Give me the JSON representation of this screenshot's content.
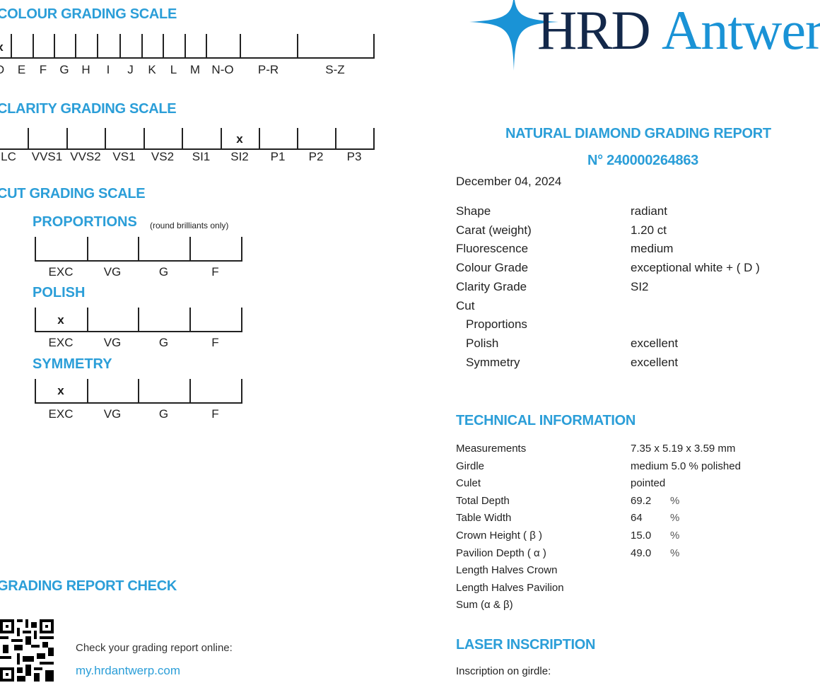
{
  "colour_scale": {
    "title": "COLOUR GRADING SCALE",
    "grades": [
      "D",
      "E",
      "F",
      "G",
      "H",
      "I",
      "J",
      "K",
      "L",
      "M",
      "N-O",
      "P-R",
      "S-Z"
    ],
    "selected": "D",
    "mark": "x"
  },
  "clarity_scale": {
    "title": "CLARITY GRADING SCALE",
    "grades": [
      "LC",
      "VVS1",
      "VVS2",
      "VS1",
      "VS2",
      "SI1",
      "SI2",
      "P1",
      "P2",
      "P3"
    ],
    "selected": "SI2",
    "mark": "x"
  },
  "cut_scale": {
    "title": "CUT GRADING SCALE",
    "proportions": {
      "title": "PROPORTIONS",
      "note": "(round brilliants only)",
      "grades": [
        "EXC",
        "VG",
        "G",
        "F"
      ],
      "selected": null
    },
    "polish": {
      "title": "POLISH",
      "grades": [
        "EXC",
        "VG",
        "G",
        "F"
      ],
      "selected": "EXC"
    },
    "symmetry": {
      "title": "SYMMETRY",
      "grades": [
        "EXC",
        "VG",
        "G",
        "F"
      ],
      "selected": "EXC"
    },
    "mark": "x"
  },
  "report_check": {
    "title": "GRADING REPORT CHECK",
    "text": "Check your grading report online:",
    "link": "my.hrdantwerp.com"
  },
  "logo": {
    "text_dark": "HRD",
    "text_blue": "Antwerp",
    "dark_color": "#13284a",
    "blue_color": "#1a93d6"
  },
  "report": {
    "title": "NATURAL DIAMOND GRADING REPORT",
    "number": "N° 240000264863",
    "date": "December 04, 2024",
    "fields": [
      {
        "label": "Shape",
        "value": "radiant"
      },
      {
        "label": "Carat (weight)",
        "value": "1.20 ct"
      },
      {
        "label": "Fluorescence",
        "value": "medium"
      },
      {
        "label": "Colour Grade",
        "value": "exceptional white + ( D )"
      },
      {
        "label": "Clarity Grade",
        "value": "SI2"
      },
      {
        "label": "Cut",
        "value": ""
      },
      {
        "label": "Proportions",
        "value": ""
      },
      {
        "label": "Polish",
        "value": "excellent"
      },
      {
        "label": "Symmetry",
        "value": "excellent"
      }
    ]
  },
  "technical": {
    "title": "TECHNICAL INFORMATION",
    "rows": [
      {
        "label": "Measurements",
        "value": "7.35 x 5.19 x 3.59 mm",
        "unit": ""
      },
      {
        "label": "Girdle",
        "value": "medium 5.0 % polished",
        "unit": ""
      },
      {
        "label": "Culet",
        "value": "pointed",
        "unit": ""
      },
      {
        "label": "Total Depth",
        "value": "69.2",
        "unit": "%"
      },
      {
        "label": "Table Width",
        "value": "64",
        "unit": "%"
      },
      {
        "label": "Crown Height ( β )",
        "value": "15.0",
        "unit": "%"
      },
      {
        "label": "Pavilion Depth ( α )",
        "value": "49.0",
        "unit": "%"
      },
      {
        "label": "Length Halves Crown",
        "value": "",
        "unit": ""
      },
      {
        "label": "Length Halves Pavilion",
        "value": "",
        "unit": ""
      },
      {
        "label": "Sum  (α & β)",
        "value": "",
        "unit": ""
      }
    ]
  },
  "laser": {
    "title": "LASER INSCRIPTION",
    "label": "Inscription on girdle:"
  },
  "colors": {
    "accent": "#2b9ed8",
    "text": "#222222"
  }
}
